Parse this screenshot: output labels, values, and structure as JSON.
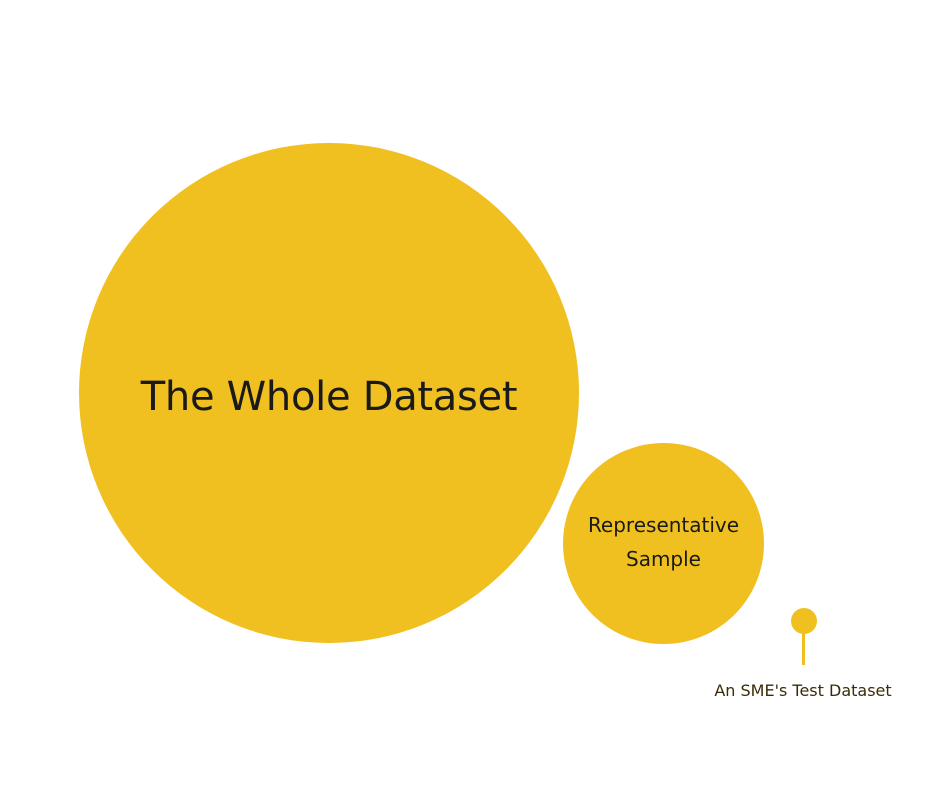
{
  "colors": {
    "circle_fill": "#f0c020",
    "text_dark": "#1a1a1a",
    "text_brown": "#3a2c08",
    "background": "#ffffff"
  },
  "diagram": {
    "nodes": [
      {
        "id": "whole",
        "label": "The Whole Dataset"
      },
      {
        "id": "sample",
        "label": "Representative Sample"
      },
      {
        "id": "sme",
        "label": "An SME's Test Dataset"
      }
    ]
  }
}
